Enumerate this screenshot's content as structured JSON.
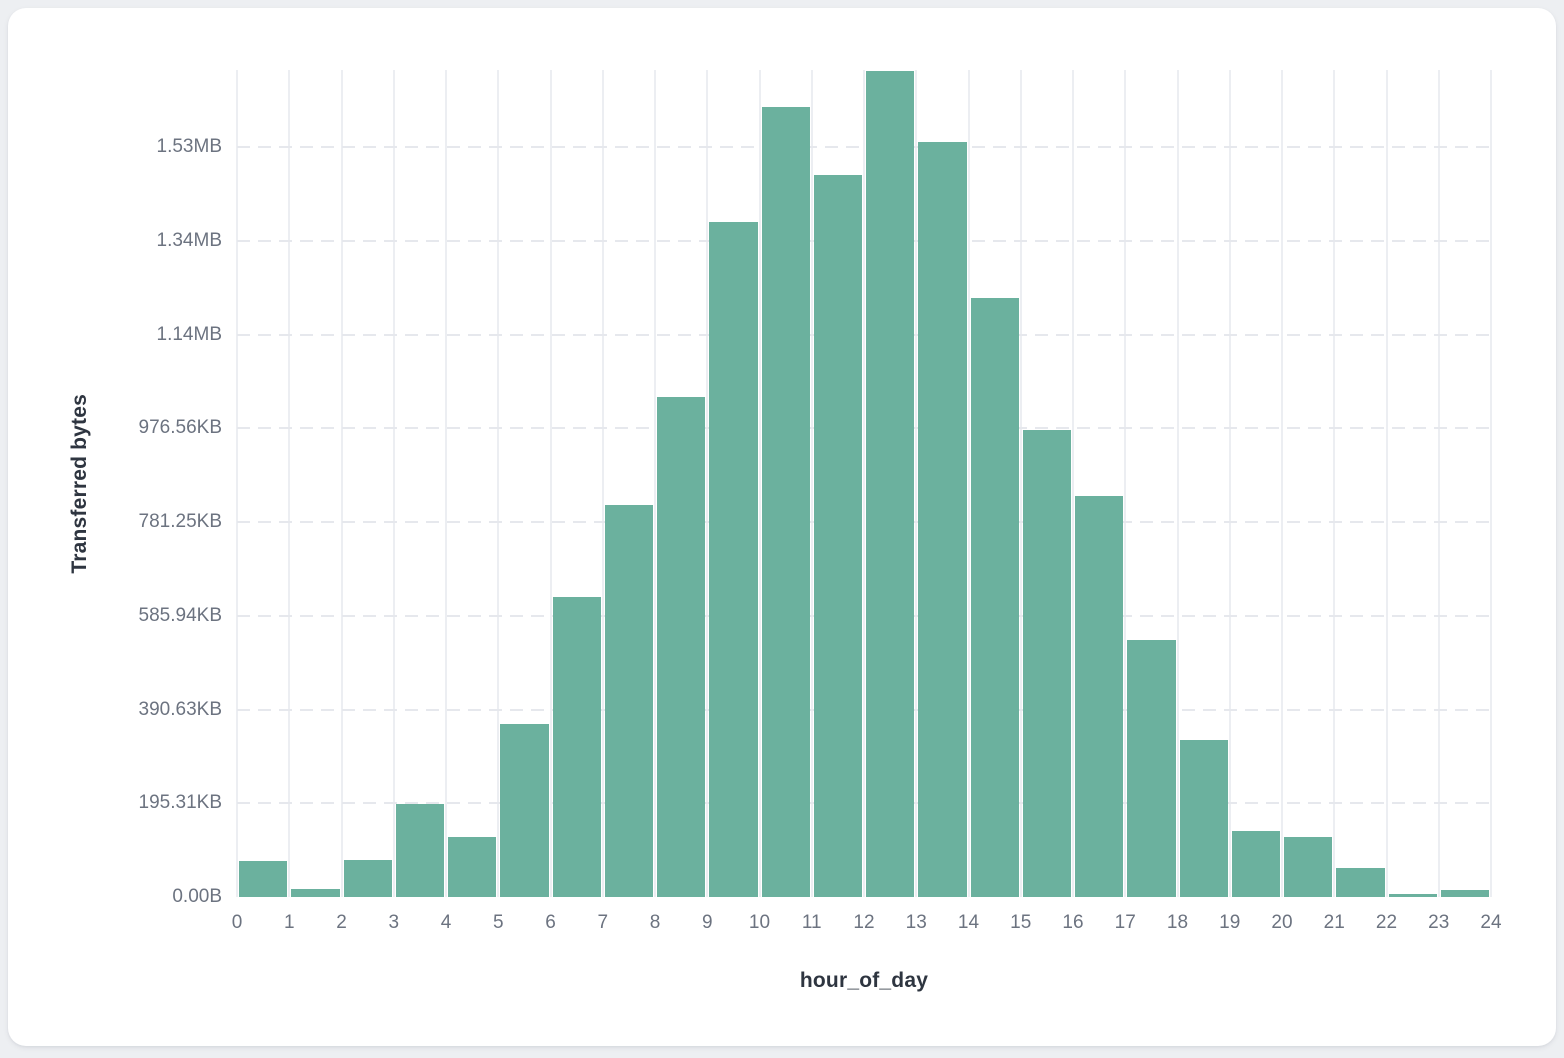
{
  "chart_data": {
    "type": "bar",
    "title": "",
    "xlabel": "hour_of_day",
    "ylabel": "Transferred bytes",
    "bin_width_hours": 1,
    "categories": [
      0,
      1,
      2,
      3,
      4,
      5,
      6,
      7,
      8,
      9,
      10,
      11,
      12,
      13,
      14,
      15,
      16,
      17,
      18,
      19,
      20,
      21,
      22,
      23
    ],
    "values_bytes": [
      76000,
      18000,
      80000,
      198000,
      128000,
      370000,
      640000,
      837000,
      1067000,
      1441000,
      1685000,
      1540000,
      1762000,
      1610000,
      1278000,
      996000,
      856000,
      548000,
      335000,
      141000,
      127000,
      61000,
      6000,
      16000
    ],
    "x_tick_labels": [
      "0",
      "1",
      "2",
      "3",
      "4",
      "5",
      "6",
      "7",
      "8",
      "9",
      "10",
      "11",
      "12",
      "13",
      "14",
      "15",
      "16",
      "17",
      "18",
      "19",
      "20",
      "21",
      "22",
      "23",
      "24"
    ],
    "y_ticks": [
      {
        "bytes": 0,
        "label": "0.00B"
      },
      {
        "bytes": 200000,
        "label": "195.31KB"
      },
      {
        "bytes": 400000,
        "label": "390.63KB"
      },
      {
        "bytes": 600000,
        "label": "585.94KB"
      },
      {
        "bytes": 800000,
        "label": "781.25KB"
      },
      {
        "bytes": 1000000,
        "label": "976.56KB"
      },
      {
        "bytes": 1200000,
        "label": "1.14MB"
      },
      {
        "bytes": 1400000,
        "label": "1.34MB"
      },
      {
        "bytes": 1600000,
        "label": "1.53MB"
      }
    ],
    "xlim": [
      0,
      24
    ],
    "ylim_bytes": [
      0,
      1764300
    ],
    "grid": {
      "vertical": "solid",
      "horizontal": "dashed"
    },
    "legend": "none"
  },
  "colors": {
    "page_background": "#edeff2",
    "card_background": "#ffffff",
    "bar_fill": "#6bb19e",
    "bar_stroke": "#ffffff",
    "vertical_grid": "#eceef2",
    "horizontal_grid_dash": "#e6e8ed",
    "tick_label": "#6c7380",
    "axis_title": "#2e3540"
  }
}
